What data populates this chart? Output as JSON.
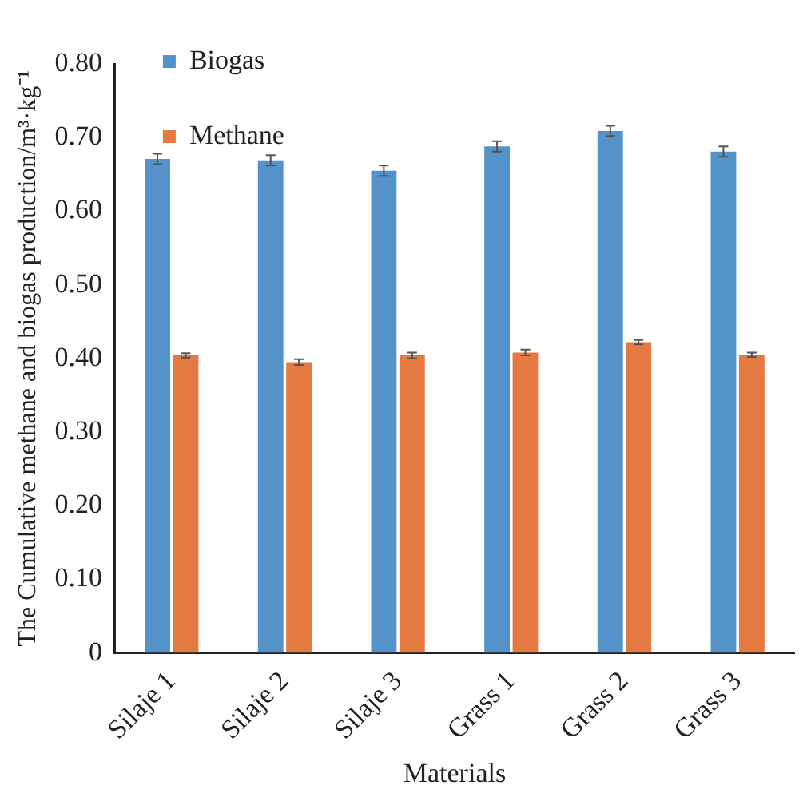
{
  "chart_data": {
    "type": "bar",
    "xlabel": "Materials",
    "ylabel": "The Cumulative methane and biogas production/m³·kg⁻¹",
    "categories": [
      "Silaje 1",
      "Silaje 2",
      "Silaje 3",
      "Grass 1",
      "Grass 2",
      "Grass 3"
    ],
    "series": [
      {
        "name": "Biogas",
        "color": "#5393c9",
        "values": [
          0.671,
          0.669,
          0.655,
          0.688,
          0.709,
          0.681
        ],
        "errors": [
          0.007,
          0.007,
          0.007,
          0.007,
          0.007,
          0.007
        ]
      },
      {
        "name": "Methane",
        "color": "#e47a42",
        "values": [
          0.404,
          0.395,
          0.404,
          0.408,
          0.422,
          0.405
        ],
        "errors": [
          0.003,
          0.004,
          0.004,
          0.004,
          0.003,
          0.003
        ]
      }
    ],
    "ylim": [
      0,
      0.8
    ],
    "yticks": [
      {
        "value": 0,
        "label": "0"
      },
      {
        "value": 0.1,
        "label": "0.10"
      },
      {
        "value": 0.2,
        "label": "0.20"
      },
      {
        "value": 0.3,
        "label": "0.30"
      },
      {
        "value": 0.4,
        "label": "0.40"
      },
      {
        "value": 0.5,
        "label": "0.50"
      },
      {
        "value": 0.6,
        "label": "0.60"
      },
      {
        "value": 0.7,
        "label": "0.70"
      },
      {
        "value": 0.8,
        "label": "0.80"
      }
    ],
    "grid": false,
    "legend": "top left"
  }
}
